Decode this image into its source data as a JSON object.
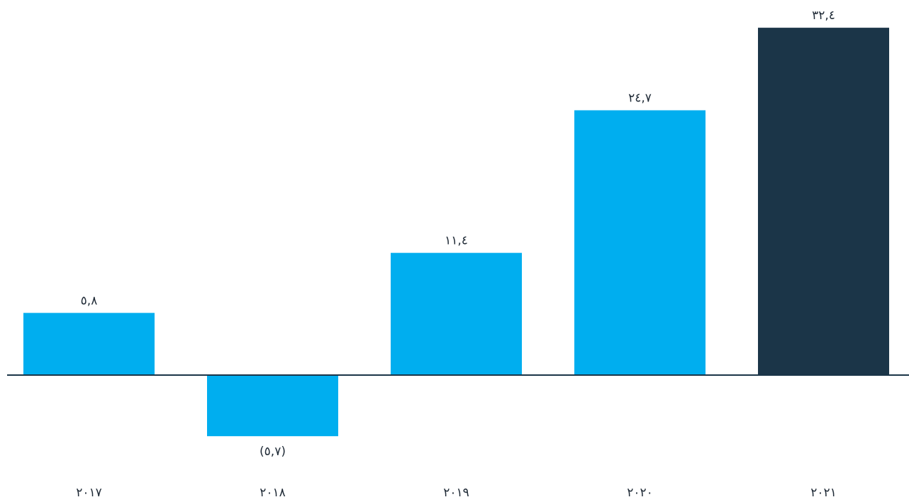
{
  "chart_data": {
    "type": "bar",
    "categories": [
      "٢٠١٧",
      "٢٠١٨",
      "٢٠١٩",
      "٢٠٢٠",
      "٢٠٢١"
    ],
    "values": [
      5.8,
      -5.7,
      11.4,
      24.7,
      32.4
    ],
    "value_labels": [
      "٥,٨",
      "(٥,٧)",
      "١١,٤",
      "٢٤,٧",
      "٣٢,٤"
    ],
    "bar_colors": [
      "#00aeef",
      "#00aeef",
      "#00aeef",
      "#00aeef",
      "#1b3548"
    ],
    "baseline_color": "#1b3548",
    "ylim": [
      -5.7,
      32.4
    ],
    "grid": false,
    "legend": "none"
  }
}
